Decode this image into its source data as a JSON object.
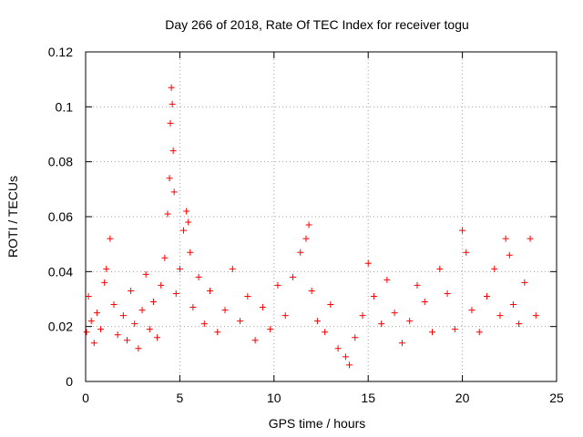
{
  "chart_data": {
    "type": "scatter",
    "title": "Day 266 of 2018, Rate Of TEC Index for receiver togu",
    "xlabel": "GPS time / hours",
    "ylabel": "ROTI / TECUs",
    "xlim": [
      0,
      25
    ],
    "ylim": [
      0,
      0.12
    ],
    "x_ticks": [
      0,
      5,
      10,
      15,
      20,
      25
    ],
    "x_tick_labels": [
      "0",
      "5",
      "10",
      "15",
      "20",
      "25"
    ],
    "y_ticks": [
      0,
      0.02,
      0.04,
      0.06,
      0.08,
      0.1,
      0.12
    ],
    "y_tick_labels": [
      "0",
      "0.02",
      "0.04",
      "0.06",
      "0.08",
      "0.1",
      "0.12"
    ],
    "grid": true,
    "marker": "+",
    "color": "#ff0000",
    "series": [
      {
        "name": "ROTI",
        "x": [
          0.05,
          0.15,
          0.3,
          0.45,
          0.6,
          0.8,
          1.0,
          1.1,
          1.3,
          1.5,
          1.7,
          2.0,
          2.2,
          2.4,
          2.6,
          2.8,
          3.0,
          3.2,
          3.4,
          3.6,
          3.8,
          4.0,
          4.2,
          4.35,
          4.45,
          4.5,
          4.55,
          4.6,
          4.65,
          4.7,
          4.8,
          5.0,
          5.2,
          5.35,
          5.45,
          5.55,
          5.7,
          6.0,
          6.3,
          6.6,
          7.0,
          7.4,
          7.8,
          8.2,
          8.6,
          9.0,
          9.4,
          9.8,
          10.2,
          10.6,
          11.0,
          11.4,
          11.7,
          11.85,
          12.0,
          12.3,
          12.7,
          13.0,
          13.4,
          13.8,
          14.0,
          14.3,
          14.7,
          15.0,
          15.3,
          15.7,
          16.0,
          16.4,
          16.8,
          17.2,
          17.6,
          18.0,
          18.4,
          18.8,
          19.2,
          19.6,
          20.0,
          20.2,
          20.5,
          20.9,
          21.3,
          21.7,
          22.0,
          22.3,
          22.5,
          22.7,
          23.0,
          23.3,
          23.6,
          23.9
        ],
        "y": [
          0.018,
          0.031,
          0.022,
          0.014,
          0.025,
          0.019,
          0.036,
          0.041,
          0.052,
          0.028,
          0.017,
          0.024,
          0.015,
          0.033,
          0.021,
          0.012,
          0.026,
          0.039,
          0.019,
          0.029,
          0.016,
          0.035,
          0.045,
          0.061,
          0.074,
          0.094,
          0.107,
          0.101,
          0.084,
          0.069,
          0.032,
          0.041,
          0.055,
          0.062,
          0.058,
          0.047,
          0.027,
          0.038,
          0.021,
          0.033,
          0.018,
          0.026,
          0.041,
          0.022,
          0.031,
          0.015,
          0.027,
          0.019,
          0.035,
          0.024,
          0.038,
          0.047,
          0.052,
          0.057,
          0.033,
          0.022,
          0.018,
          0.028,
          0.012,
          0.009,
          0.006,
          0.016,
          0.024,
          0.043,
          0.031,
          0.021,
          0.037,
          0.025,
          0.014,
          0.022,
          0.035,
          0.029,
          0.018,
          0.041,
          0.032,
          0.019,
          0.055,
          0.047,
          0.026,
          0.018,
          0.031,
          0.041,
          0.024,
          0.052,
          0.046,
          0.028,
          0.021,
          0.036,
          0.052,
          0.024
        ]
      }
    ]
  }
}
